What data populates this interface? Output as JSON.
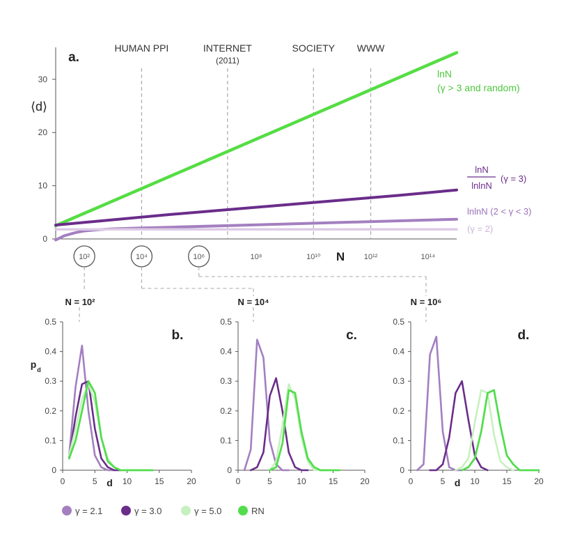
{
  "colors": {
    "g21": "#a37fc0",
    "g30": "#6a2d8a",
    "g50": "#c6f0c0",
    "rn": "#53dd4d",
    "lnN": "#55dd44",
    "lnln_g3": "#6a2d8a",
    "lnlnN": "#a37fc0",
    "g2": "#dccbe6",
    "axis": "#555555",
    "text": "#222222",
    "dashed": "#a8a8a8"
  },
  "chart_data": [
    {
      "id": "a",
      "type": "line",
      "panel_label": "a.",
      "ylabel": "⟨d⟩",
      "xlabel": "N",
      "ylim": [
        0,
        36
      ],
      "yticks": [
        0,
        10,
        20,
        30
      ],
      "xlim": [
        1,
        15
      ],
      "xtick_labels": [
        {
          "exp": 2,
          "label": "10²",
          "circled": true
        },
        {
          "exp": 4,
          "label": "10⁴",
          "circled": true
        },
        {
          "exp": 6,
          "label": "10⁶",
          "circled": true
        },
        {
          "exp": 8,
          "label": "10⁸",
          "circled": false
        },
        {
          "exp": 10,
          "label": "10¹⁰",
          "circled": false
        },
        {
          "exp": 12,
          "label": "10¹²",
          "circled": false
        },
        {
          "exp": 14,
          "label": "10¹⁴",
          "circled": false
        }
      ],
      "vlines": [
        {
          "exp": 4.0,
          "label": "HUMAN PPI",
          "sublabel": ""
        },
        {
          "exp": 7.0,
          "label": "INTERNET",
          "sublabel": "(2011)"
        },
        {
          "exp": 10.0,
          "label": "SOCIETY",
          "sublabel": ""
        },
        {
          "exp": 12.0,
          "label": "WWW",
          "sublabel": ""
        }
      ],
      "series": [
        {
          "key": "lnN",
          "x": [
            1.0,
            15.0
          ],
          "y": [
            2.5,
            35.0
          ]
        },
        {
          "key": "lnln_g3",
          "x": [
            1.0,
            3.0,
            5.0,
            7.0,
            9.0,
            11.0,
            13.0,
            15.0
          ],
          "y": [
            2.6,
            3.6,
            4.6,
            5.5,
            6.4,
            7.3,
            8.2,
            9.2
          ]
        },
        {
          "key": "lnlnN",
          "x": [
            1.0,
            1.3,
            1.7,
            2.0,
            2.5,
            3.0,
            4.0,
            5.0,
            7.0,
            9.0,
            11.0,
            13.0,
            15.0
          ],
          "y": [
            -0.2,
            0.6,
            1.2,
            1.5,
            1.75,
            1.9,
            2.05,
            2.2,
            2.5,
            2.8,
            3.1,
            3.4,
            3.7
          ]
        },
        {
          "key": "g2",
          "x": [
            1.0,
            15.0
          ],
          "y": [
            1.8,
            1.8
          ]
        }
      ],
      "labels": [
        {
          "key": "lnN",
          "line1": "lnN",
          "line2": "(γ > 3 and random)"
        },
        {
          "key": "lnln_g3",
          "numerator": "lnN",
          "denominator": "lnlnN",
          "suffix": "(γ = 3)"
        },
        {
          "key": "lnlnN",
          "text": "lnlnN (2 < γ < 3)"
        },
        {
          "key": "g2",
          "text": "(γ = 2)"
        }
      ]
    },
    {
      "id": "b",
      "type": "line",
      "panel_label": "b.",
      "title": "N = 10²",
      "ylabel": "p",
      "ylabel_sub": "d",
      "xlabel": "d",
      "xlim": [
        0,
        20
      ],
      "ylim": [
        0,
        0.5
      ],
      "yticks": [
        0,
        0.1,
        0.2,
        0.3,
        0.4,
        0.5
      ],
      "xticks": [
        0,
        5,
        10,
        15,
        20
      ],
      "series": [
        {
          "key": "g21",
          "x": [
            1,
            2,
            3,
            4,
            5,
            6,
            7,
            8
          ],
          "y": [
            0.05,
            0.28,
            0.42,
            0.2,
            0.05,
            0.01,
            0.0,
            0.0
          ]
        },
        {
          "key": "g30",
          "x": [
            1,
            2,
            3,
            4,
            5,
            6,
            7,
            8,
            9
          ],
          "y": [
            0.04,
            0.18,
            0.29,
            0.3,
            0.14,
            0.04,
            0.01,
            0.0,
            0.0
          ]
        },
        {
          "key": "g50",
          "x": [
            1,
            2,
            3,
            4,
            5,
            6,
            7,
            8,
            9,
            10,
            12,
            14
          ],
          "y": [
            0.05,
            0.14,
            0.24,
            0.29,
            0.23,
            0.11,
            0.04,
            0.01,
            0.0,
            0.0,
            0.0,
            0.0
          ]
        },
        {
          "key": "rn",
          "x": [
            1,
            2,
            3,
            4,
            5,
            6,
            7,
            8,
            9,
            10,
            12,
            14
          ],
          "y": [
            0.04,
            0.1,
            0.2,
            0.3,
            0.26,
            0.11,
            0.03,
            0.01,
            0.0,
            0.0,
            0.0,
            0.0
          ]
        }
      ]
    },
    {
      "id": "c",
      "type": "line",
      "panel_label": "c.",
      "title": "N = 10⁴",
      "xlabel": "",
      "xlim": [
        0,
        20
      ],
      "ylim": [
        0,
        0.5
      ],
      "yticks": [
        0,
        0.1,
        0.2,
        0.3,
        0.4,
        0.5
      ],
      "xticks": [
        0,
        5,
        10,
        15,
        20
      ],
      "series": [
        {
          "key": "g21",
          "x": [
            1,
            2,
            3,
            4,
            5,
            6,
            7,
            8
          ],
          "y": [
            0.0,
            0.07,
            0.44,
            0.38,
            0.1,
            0.02,
            0.0,
            0.0
          ]
        },
        {
          "key": "g30",
          "x": [
            2,
            3,
            4,
            5,
            6,
            7,
            8,
            9,
            10,
            11
          ],
          "y": [
            0.0,
            0.01,
            0.06,
            0.25,
            0.31,
            0.2,
            0.06,
            0.01,
            0.0,
            0.0
          ]
        },
        {
          "key": "g50",
          "x": [
            5,
            6,
            7,
            8,
            9,
            10,
            11,
            12,
            13,
            14
          ],
          "y": [
            0.0,
            0.03,
            0.15,
            0.29,
            0.24,
            0.11,
            0.03,
            0.0,
            0.0,
            0.0
          ]
        },
        {
          "key": "rn",
          "x": [
            5,
            6,
            7,
            8,
            9,
            10,
            11,
            12,
            13,
            14,
            16
          ],
          "y": [
            0.0,
            0.01,
            0.09,
            0.27,
            0.26,
            0.13,
            0.04,
            0.01,
            0.0,
            0.0,
            0.0
          ]
        }
      ]
    },
    {
      "id": "d",
      "type": "line",
      "panel_label": "d.",
      "title": "N = 10⁶",
      "xlabel": "d",
      "xlim": [
        0,
        20
      ],
      "ylim": [
        0,
        0.5
      ],
      "yticks": [
        0,
        0.1,
        0.2,
        0.3,
        0.4,
        0.5
      ],
      "xticks": [
        0,
        5,
        10,
        15,
        20
      ],
      "series": [
        {
          "key": "g21",
          "x": [
            1,
            2,
            3,
            4,
            5,
            6,
            7,
            8
          ],
          "y": [
            0.0,
            0.02,
            0.39,
            0.45,
            0.13,
            0.01,
            0.0,
            0.0
          ]
        },
        {
          "key": "g30",
          "x": [
            3,
            4,
            5,
            6,
            7,
            8,
            9,
            10,
            11,
            12
          ],
          "y": [
            0.0,
            0.0,
            0.02,
            0.11,
            0.26,
            0.3,
            0.17,
            0.05,
            0.01,
            0.0
          ]
        },
        {
          "key": "g50",
          "x": [
            7,
            8,
            9,
            10,
            11,
            12,
            13,
            14,
            15,
            16
          ],
          "y": [
            0.0,
            0.01,
            0.04,
            0.16,
            0.27,
            0.26,
            0.12,
            0.03,
            0.01,
            0.0
          ]
        },
        {
          "key": "rn",
          "x": [
            8,
            9,
            10,
            11,
            12,
            13,
            14,
            15,
            16,
            17,
            18,
            20
          ],
          "y": [
            0.0,
            0.01,
            0.04,
            0.13,
            0.26,
            0.27,
            0.15,
            0.05,
            0.02,
            0.0,
            0.0,
            0.0
          ]
        }
      ]
    }
  ],
  "legend": [
    {
      "key": "g21",
      "label": "γ = 2.1"
    },
    {
      "key": "g30",
      "label": "γ = 3.0"
    },
    {
      "key": "g50",
      "label": "γ = 5.0"
    },
    {
      "key": "rn",
      "label": "RN"
    }
  ]
}
